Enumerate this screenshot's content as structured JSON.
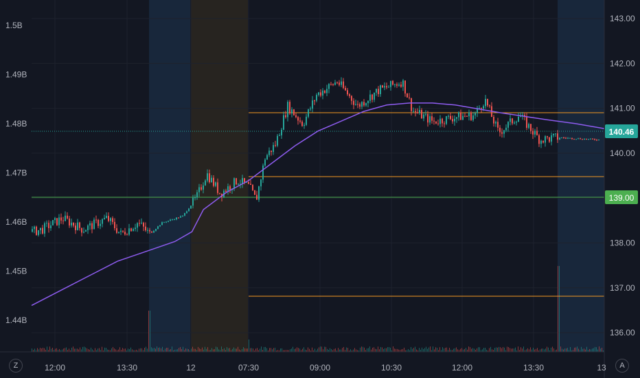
{
  "chart_data": {
    "type": "candlestick",
    "left_axis": {
      "ticks": [
        "1.5B",
        "1.49B",
        "1.48B",
        "1.47B",
        "1.46B",
        "1.45B",
        "1.44B"
      ],
      "values": [
        1.5,
        1.49,
        1.48,
        1.47,
        1.46,
        1.45,
        1.44
      ]
    },
    "right_axis": {
      "ticks": [
        "143.00",
        "142.00",
        "141.00",
        "140.00",
        "139.00",
        "138.00",
        "137.00",
        "136.00"
      ],
      "values": [
        143,
        142,
        141,
        140,
        139,
        138,
        137,
        136
      ]
    },
    "x_ticks": [
      "12:00",
      "13:30",
      "12",
      "07:30",
      "09:00",
      "10:30",
      "12:00",
      "13:30",
      "13"
    ],
    "last_price": "140.46",
    "level_price": "139.00",
    "horizontal_levels": [
      140.88,
      139.45,
      139.0,
      136.8
    ],
    "colors": {
      "up": "#26a69a",
      "down": "#ef5350",
      "ma": "#8e5cf0",
      "level": "#f59a23",
      "green_level": "#4caf50",
      "last": "#26a69a"
    },
    "moving_average_points": [
      [
        0,
        1.443
      ],
      [
        0.05,
        1.446
      ],
      [
        0.1,
        1.449
      ],
      [
        0.15,
        1.452
      ],
      [
        0.2,
        1.454
      ],
      [
        0.25,
        1.456
      ],
      [
        0.28,
        1.458
      ],
      [
        0.3,
        1.4625
      ],
      [
        0.34,
        1.466
      ],
      [
        0.38,
        1.4685
      ],
      [
        0.42,
        1.472
      ],
      [
        0.46,
        1.4755
      ],
      [
        0.5,
        1.4785
      ],
      [
        0.54,
        1.4805
      ],
      [
        0.58,
        1.4825
      ],
      [
        0.62,
        1.4838
      ],
      [
        0.66,
        1.4842
      ],
      [
        0.7,
        1.4842
      ],
      [
        0.74,
        1.4838
      ],
      [
        0.78,
        1.483
      ],
      [
        0.82,
        1.4822
      ],
      [
        0.86,
        1.4815
      ],
      [
        0.9,
        1.4808
      ],
      [
        0.95,
        1.48
      ],
      [
        1,
        1.479
      ]
    ]
  },
  "ui": {
    "corner_left": "Z",
    "corner_right": "A"
  }
}
